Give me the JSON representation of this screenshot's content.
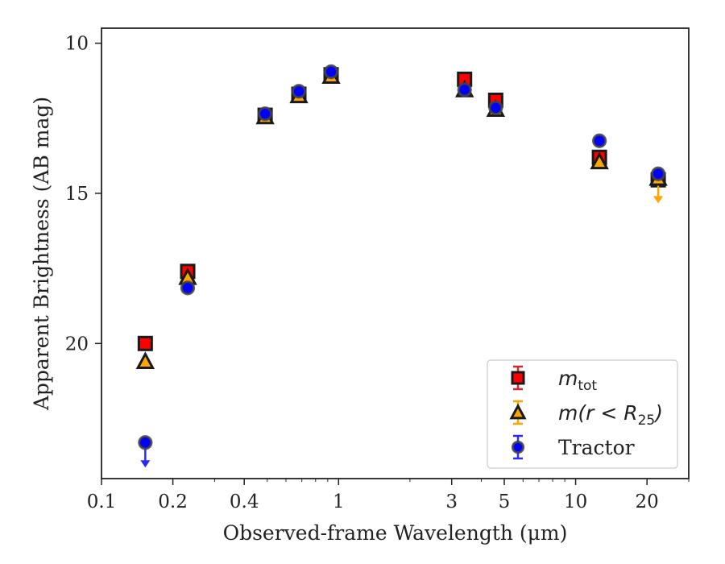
{
  "chart_data": {
    "type": "scatter",
    "xlabel": "Observed-frame Wavelength (μm)",
    "ylabel": "Apparent Brightness (AB mag)",
    "xscale": "log",
    "xlim": [
      0.1,
      30
    ],
    "ylim": [
      24.5,
      9.5
    ],
    "y_inverted": true,
    "x_ticks": [
      0.1,
      0.2,
      0.4,
      1,
      3,
      5,
      10,
      20
    ],
    "x_tick_labels": [
      "0.1",
      "0.2",
      "0.4",
      "1",
      "3",
      "5",
      "10",
      "20"
    ],
    "y_ticks": [
      10,
      15,
      20
    ],
    "y_tick_labels": [
      "10",
      "15",
      "20"
    ],
    "grid": false,
    "legend_position": "lower-right",
    "series": [
      {
        "key": "mtot",
        "legend_base": "m",
        "legend_sub": "tot",
        "legend_rest": "",
        "marker": "square",
        "face_color": "#ff0000",
        "edge_color": "#1a1a1a",
        "err_color": "#d62728",
        "points": [
          {
            "x": 0.153,
            "y": 20.0,
            "limit": false
          },
          {
            "x": 0.231,
            "y": 17.6,
            "limit": false
          },
          {
            "x": 0.49,
            "y": 12.4,
            "limit": false
          },
          {
            "x": 0.68,
            "y": 11.7,
            "limit": false
          },
          {
            "x": 0.93,
            "y": 11.05,
            "limit": false
          },
          {
            "x": 3.4,
            "y": 11.2,
            "limit": false
          },
          {
            "x": 4.6,
            "y": 11.9,
            "limit": false
          },
          {
            "x": 12.6,
            "y": 13.8,
            "limit": false
          },
          {
            "x": 22.3,
            "y": 14.55,
            "limit": false
          }
        ]
      },
      {
        "key": "m_r25",
        "legend_base": "m",
        "legend_sub": "25",
        "legend_rest": "(r < R",
        "marker": "triangle",
        "face_color": "#ffa500",
        "edge_color": "#1a1a1a",
        "err_color": "#ffa500",
        "points": [
          {
            "x": 0.153,
            "y": 20.6,
            "limit": false
          },
          {
            "x": 0.231,
            "y": 17.8,
            "limit": false
          },
          {
            "x": 0.49,
            "y": 12.45,
            "limit": false
          },
          {
            "x": 0.68,
            "y": 11.75,
            "limit": false
          },
          {
            "x": 0.93,
            "y": 11.1,
            "limit": false
          },
          {
            "x": 3.4,
            "y": 11.55,
            "limit": false
          },
          {
            "x": 4.6,
            "y": 12.2,
            "limit": false
          },
          {
            "x": 12.6,
            "y": 13.95,
            "limit": false
          },
          {
            "x": 22.3,
            "y": 14.5,
            "limit": true
          }
        ]
      },
      {
        "key": "tractor",
        "legend_base": "",
        "legend_sub": "",
        "legend_rest": "",
        "legend_label": "Tractor",
        "marker": "circle",
        "face_color": "#0000ff",
        "edge_color": "#444444",
        "err_color": "#2a2aff",
        "points": [
          {
            "x": 0.153,
            "y": 23.3,
            "limit": true
          },
          {
            "x": 0.231,
            "y": 18.15,
            "limit": false
          },
          {
            "x": 0.49,
            "y": 12.35,
            "limit": false
          },
          {
            "x": 0.68,
            "y": 11.6,
            "limit": false
          },
          {
            "x": 0.93,
            "y": 10.95,
            "limit": false
          },
          {
            "x": 3.4,
            "y": 11.55,
            "limit": false
          },
          {
            "x": 4.6,
            "y": 12.15,
            "limit": false
          },
          {
            "x": 12.6,
            "y": 13.25,
            "limit": false
          },
          {
            "x": 22.3,
            "y": 14.35,
            "limit": false
          }
        ]
      }
    ]
  }
}
